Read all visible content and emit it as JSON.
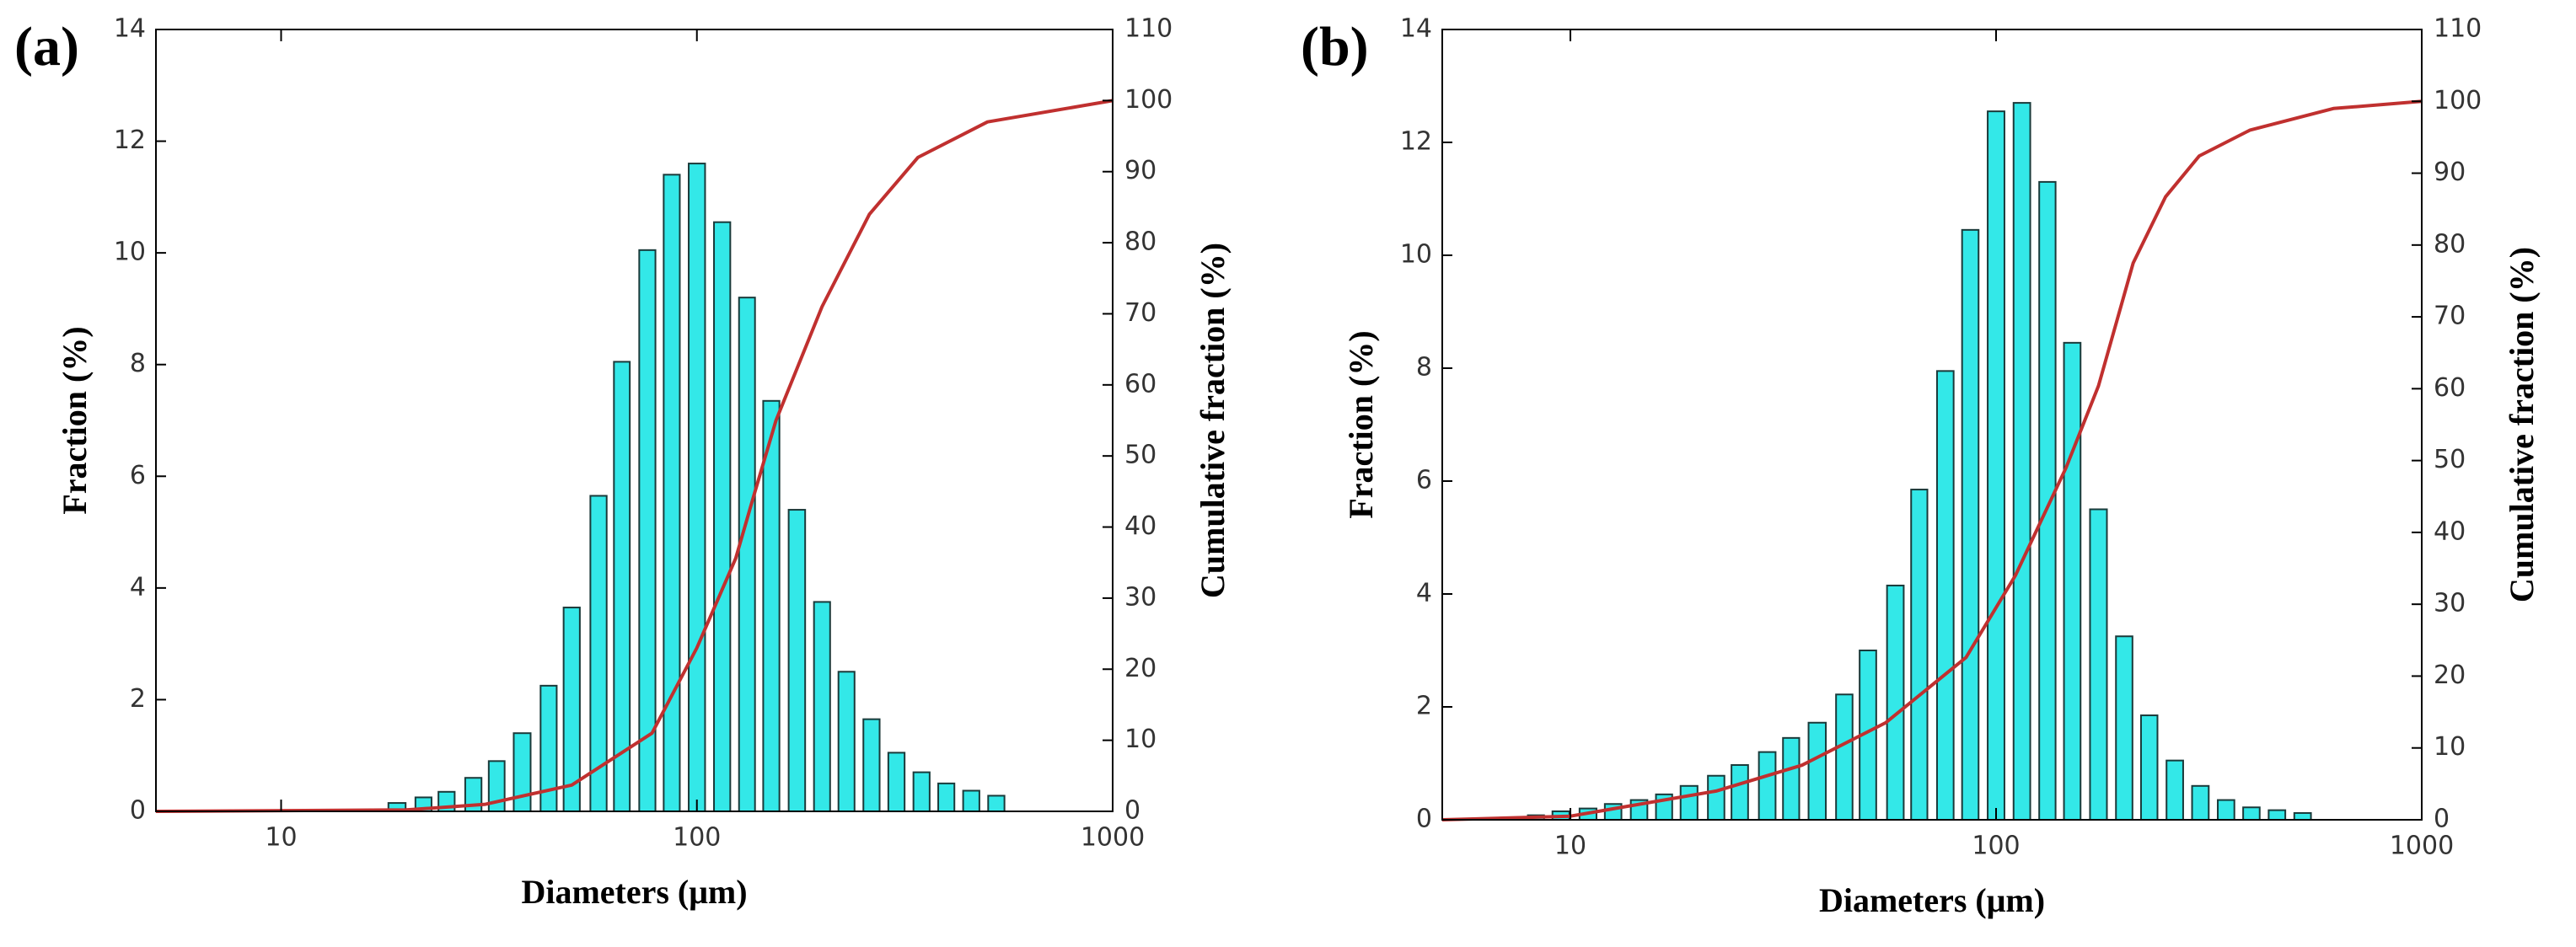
{
  "chart_data": [
    {
      "type": "bar",
      "label": "(a)",
      "xlabel": "Diameters (μm)",
      "ylabel": "Fraction (%)",
      "y2label": "Cumulative fraction (%)",
      "xscale": "log",
      "xlim": [
        5,
        1000
      ],
      "xticks": [
        10,
        100,
        1000
      ],
      "ylim": [
        0,
        14
      ],
      "yticks": [
        0,
        2,
        4,
        6,
        8,
        10,
        12,
        14
      ],
      "y2lim": [
        0,
        110
      ],
      "y2ticks": [
        0,
        10,
        20,
        30,
        40,
        50,
        60,
        70,
        80,
        90,
        100,
        110
      ],
      "series": [
        {
          "type": "bar",
          "color": "#33e8e8",
          "x": [
            19,
            22,
            25,
            29,
            33,
            38,
            44,
            50,
            58,
            66,
            76,
            87,
            100,
            115,
            132,
            151,
            174,
            200,
            229,
            263,
            302,
            347,
            398,
            457,
            525
          ],
          "values": [
            0.15,
            0.25,
            0.35,
            0.6,
            0.9,
            1.4,
            2.25,
            3.65,
            5.65,
            8.05,
            10.05,
            11.4,
            11.6,
            10.55,
            9.2,
            7.35,
            5.4,
            3.75,
            2.5,
            1.65,
            1.05,
            0.7,
            0.5,
            0.37,
            0.28
          ]
        },
        {
          "type": "line",
          "axis": "y2",
          "color": "#c0302f",
          "x": [
            5,
            20,
            31,
            50,
            78,
            100,
            124,
            138,
            155,
            200,
            260,
            340,
            500,
            1000
          ],
          "values": [
            0,
            0.2,
            1,
            3.7,
            11,
            23,
            35.6,
            45,
            55,
            71,
            84,
            92,
            97,
            100
          ]
        }
      ]
    },
    {
      "type": "bar",
      "label": "(b)",
      "xlabel": "Diameters (μm)",
      "ylabel": "Fraction (%)",
      "y2label": "Cumulative fraction (%)",
      "xscale": "log",
      "xlim": [
        5,
        1000
      ],
      "xticks": [
        10,
        100,
        1000
      ],
      "ylim": [
        0,
        14
      ],
      "yticks": [
        0,
        2,
        4,
        6,
        8,
        10,
        12,
        14
      ],
      "y2lim": [
        0,
        110
      ],
      "y2ticks": [
        0,
        10,
        20,
        30,
        40,
        50,
        60,
        70,
        80,
        90,
        100,
        110
      ],
      "series": [
        {
          "type": "bar",
          "color": "#33e8e8",
          "x": [
            8.3,
            9.5,
            11,
            12.6,
            14.5,
            16.6,
            19,
            22,
            25,
            29,
            33,
            38,
            44,
            50,
            58,
            66,
            76,
            87,
            100,
            115,
            132,
            151,
            174,
            200,
            229,
            263,
            302,
            347,
            398,
            457,
            525
          ],
          "values": [
            0.08,
            0.15,
            0.2,
            0.28,
            0.35,
            0.45,
            0.6,
            0.78,
            0.97,
            1.2,
            1.45,
            1.72,
            2.22,
            3.0,
            4.15,
            5.85,
            7.95,
            10.45,
            12.55,
            12.7,
            11.3,
            8.45,
            5.5,
            3.25,
            1.85,
            1.05,
            0.6,
            0.35,
            0.22,
            0.17,
            0.12
          ]
        },
        {
          "type": "line",
          "axis": "y2",
          "color": "#c0302f",
          "x": [
            5,
            10,
            22,
            35,
            55,
            85,
            111,
            146,
            174,
            210,
            250,
            300,
            395,
            620,
            1000
          ],
          "values": [
            0,
            0.5,
            4,
            7.6,
            13.5,
            22.6,
            34,
            49,
            60.4,
            77.5,
            86.7,
            92.4,
            96,
            99,
            100
          ]
        }
      ]
    }
  ]
}
